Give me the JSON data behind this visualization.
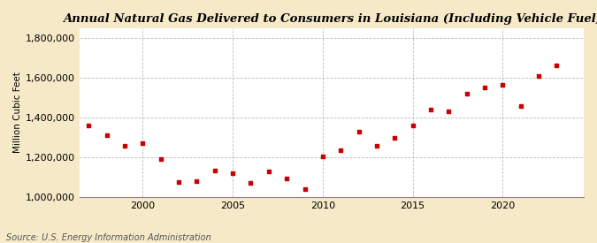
{
  "title": "Annual Natural Gas Delivered to Consumers in Louisiana (Including Vehicle Fuel)",
  "ylabel": "Million Cubic Feet",
  "source": "Source: U.S. Energy Information Administration",
  "background_color": "#f5e9c8",
  "plot_background_color": "#ffffff",
  "marker_color": "#cc0000",
  "xlim": [
    1996.5,
    2024.5
  ],
  "ylim": [
    1000000,
    1850000
  ],
  "yticks": [
    1000000,
    1200000,
    1400000,
    1600000,
    1800000
  ],
  "xticks": [
    2000,
    2005,
    2010,
    2015,
    2020
  ],
  "years": [
    1997,
    1998,
    1999,
    2000,
    2001,
    2002,
    2003,
    2004,
    2005,
    2006,
    2007,
    2008,
    2009,
    2010,
    2011,
    2012,
    2013,
    2014,
    2015,
    2016,
    2017,
    2018,
    2019,
    2020,
    2021,
    2022,
    2023
  ],
  "values": [
    1360000,
    1310000,
    1260000,
    1270000,
    1190000,
    1075000,
    1080000,
    1135000,
    1120000,
    1070000,
    1130000,
    1095000,
    1040000,
    1205000,
    1235000,
    1330000,
    1260000,
    1300000,
    1360000,
    1440000,
    1430000,
    1520000,
    1550000,
    1565000,
    1460000,
    1610000,
    1665000
  ],
  "title_fontsize": 9.5,
  "ylabel_fontsize": 7.5,
  "tick_fontsize": 8,
  "source_fontsize": 7
}
